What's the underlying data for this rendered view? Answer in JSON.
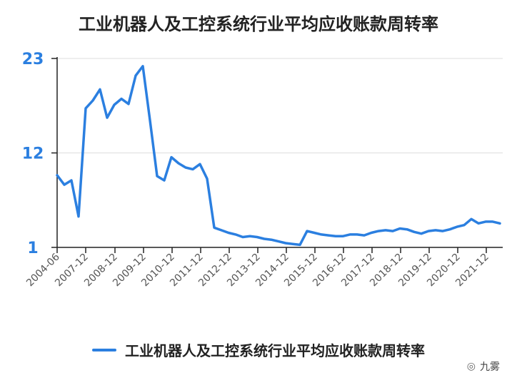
{
  "chart_data": {
    "type": "line",
    "title": "工业机器人及工控系统行业平均应收账款周转率",
    "xlabel": "",
    "ylabel": "",
    "ylim": [
      1,
      23
    ],
    "yticks": [
      "1",
      "12",
      "23"
    ],
    "x_tick_labels": [
      "2004-06",
      "2007-12",
      "2008-12",
      "2009-12",
      "2010-12",
      "2011-12",
      "2012-12",
      "2013-12",
      "2014-12",
      "2015-12",
      "2016-12",
      "2017-12",
      "2018-12",
      "2019-12",
      "2020-12",
      "2021-12"
    ],
    "grid": true,
    "legend_position": "bottom",
    "series": [
      {
        "name": "工业机器人及工控系统行业平均应收账款周转率",
        "color": "#2b7fe0",
        "values": [
          9.4,
          8.3,
          8.8,
          4.6,
          17.2,
          18.1,
          19.4,
          16.1,
          17.6,
          18.3,
          17.7,
          21.0,
          22.1,
          15.8,
          9.3,
          8.8,
          11.5,
          10.8,
          10.3,
          10.1,
          10.7,
          9.0,
          3.3,
          3.0,
          2.7,
          2.5,
          2.2,
          2.3,
          2.2,
          2.0,
          1.9,
          1.7,
          1.5,
          1.4,
          1.3,
          2.9,
          2.7,
          2.5,
          2.4,
          2.3,
          2.3,
          2.5,
          2.5,
          2.4,
          2.7,
          2.9,
          3.0,
          2.9,
          3.2,
          3.1,
          2.8,
          2.6,
          2.9,
          3.0,
          2.9,
          3.1,
          3.4,
          3.6,
          4.3,
          3.8,
          4.0,
          4.0,
          3.8
        ]
      }
    ]
  },
  "legend": {
    "label": "工业机器人及工控系统行业平均应收账款周转率",
    "color": "#2b7fe0"
  },
  "colors": {
    "axis_tick_text": "#2b7fe0",
    "x_tick_text": "#555555",
    "grid": "#dddddd"
  },
  "watermark": {
    "icon": "wechat-icon",
    "text": "九雾"
  }
}
